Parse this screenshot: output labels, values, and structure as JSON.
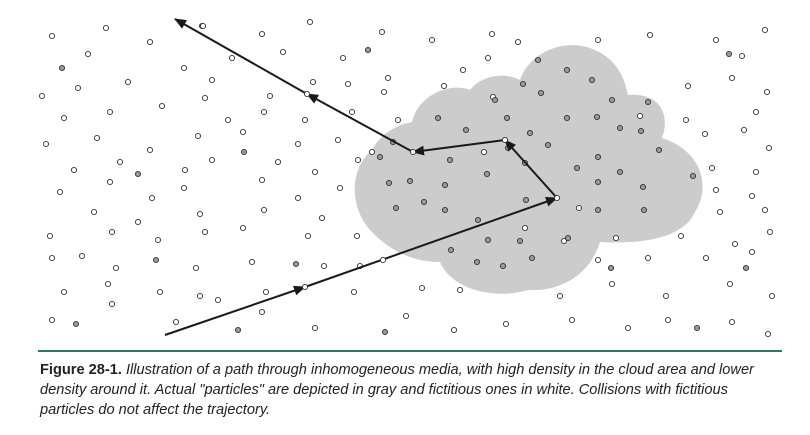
{
  "caption": {
    "label": "Figure 28-1.",
    "text": "Illustration of a path through inhomogeneous media, with high density in the cloud area and lower density around it. Actual \"particles\" are depicted in gray and fictitious ones in white. Collisions with fictitious particles do not affect the trajectory."
  },
  "colors": {
    "cloud": "#cccccc",
    "real_particle": "#999999",
    "fictitious_particle": "#ffffff",
    "path": "#1a1a1a",
    "rule": "#2f7a5a"
  }
}
